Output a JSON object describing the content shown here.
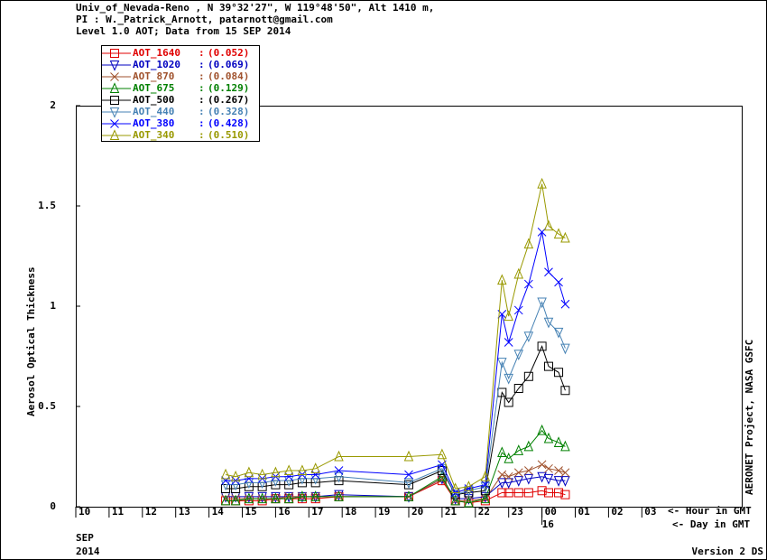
{
  "chart_data": {
    "type": "line",
    "header": [
      "Univ_of_Nevada-Reno , N 39°32'27\", W 119°48'50\", Alt 1410 m,",
      "PI : W._Patrick_Arnott, patarnott@gmail.com",
      "Level 1.0 AOT; Data from 15 SEP 2014"
    ],
    "y_label": "Aerosol Optical Thickness",
    "right_label": "AERONET Project, NASA GSFC",
    "hour_note": "<- Hour in GMT",
    "day_note": "<- Day in GMT",
    "month": "SEP",
    "year": "2014",
    "version": "Version 2 DS",
    "xlim": [
      10,
      30
    ],
    "xticks": [
      10,
      11,
      12,
      13,
      14,
      15,
      16,
      17,
      18,
      19,
      20,
      21,
      22,
      23,
      {
        "value": 24,
        "label": "00"
      },
      {
        "value": 25,
        "label": "01"
      },
      {
        "value": 26,
        "label": "02"
      },
      {
        "value": 27,
        "label": "03"
      }
    ],
    "day_ticks": [
      {
        "value": 24,
        "label": "16"
      }
    ],
    "ylim": [
      0,
      2
    ],
    "yticks": [
      0,
      0.5,
      1,
      1.5,
      2
    ],
    "x": [
      14.5,
      14.8,
      15.2,
      15.6,
      16.0,
      16.4,
      16.8,
      17.2,
      17.9,
      20.0,
      21.0,
      21.4,
      21.8,
      22.3,
      22.8,
      23.0,
      23.3,
      23.6,
      24.0,
      24.2,
      24.5,
      24.7
    ],
    "series": [
      {
        "name": "AOT_1640",
        "legend_value": "(0.052)",
        "color": "#e00000",
        "marker": "square",
        "values": [
          0.03,
          0.03,
          0.03,
          0.03,
          0.04,
          0.04,
          0.04,
          0.04,
          0.05,
          0.05,
          0.13,
          0.03,
          0.02,
          0.03,
          0.07,
          0.07,
          0.07,
          0.07,
          0.08,
          0.07,
          0.07,
          0.06
        ]
      },
      {
        "name": "AOT_1020",
        "legend_value": "(0.069)",
        "color": "#0000c0",
        "marker": "tri-down",
        "values": [
          0.05,
          0.05,
          0.05,
          0.05,
          0.05,
          0.05,
          0.05,
          0.05,
          0.06,
          0.05,
          0.14,
          0.04,
          0.04,
          0.05,
          0.12,
          0.12,
          0.13,
          0.14,
          0.15,
          0.14,
          0.13,
          0.13
        ]
      },
      {
        "name": "AOT_870",
        "legend_value": "(0.084)",
        "color": "#a0522d",
        "marker": "cross",
        "values": [
          0.04,
          0.04,
          0.04,
          0.04,
          0.04,
          0.05,
          0.05,
          0.05,
          0.05,
          0.05,
          0.14,
          0.03,
          0.03,
          0.04,
          0.16,
          0.15,
          0.17,
          0.18,
          0.21,
          0.19,
          0.18,
          0.17
        ]
      },
      {
        "name": "AOT_675",
        "legend_value": "(0.129)",
        "color": "#008000",
        "marker": "tri-up",
        "values": [
          0.03,
          0.03,
          0.04,
          0.04,
          0.04,
          0.04,
          0.05,
          0.05,
          0.05,
          0.05,
          0.15,
          0.03,
          0.02,
          0.04,
          0.27,
          0.24,
          0.28,
          0.3,
          0.38,
          0.34,
          0.32,
          0.3
        ]
      },
      {
        "name": "AOT_500",
        "legend_value": "(0.267)",
        "color": "#000000",
        "marker": "square",
        "values": [
          0.09,
          0.09,
          0.1,
          0.1,
          0.11,
          0.11,
          0.12,
          0.12,
          0.13,
          0.11,
          0.18,
          0.06,
          0.07,
          0.08,
          0.57,
          0.52,
          0.59,
          0.65,
          0.8,
          0.7,
          0.67,
          0.58
        ]
      },
      {
        "name": "AOT_440",
        "legend_value": "(0.328)",
        "color": "#4682b4",
        "marker": "tri-down",
        "values": [
          0.11,
          0.11,
          0.12,
          0.12,
          0.13,
          0.13,
          0.14,
          0.14,
          0.15,
          0.12,
          0.19,
          0.06,
          0.08,
          0.1,
          0.72,
          0.64,
          0.76,
          0.85,
          1.02,
          0.92,
          0.87,
          0.79
        ]
      },
      {
        "name": "AOT_380",
        "legend_value": "(0.428)",
        "color": "#0000ff",
        "marker": "cross",
        "values": [
          0.13,
          0.13,
          0.14,
          0.14,
          0.15,
          0.15,
          0.16,
          0.16,
          0.18,
          0.16,
          0.21,
          0.07,
          0.09,
          0.11,
          0.96,
          0.82,
          0.98,
          1.11,
          1.37,
          1.17,
          1.12,
          1.01
        ]
      },
      {
        "name": "AOT_340",
        "legend_value": "(0.510)",
        "color": "#999900",
        "marker": "tri-up",
        "values": [
          0.16,
          0.15,
          0.17,
          0.16,
          0.17,
          0.18,
          0.18,
          0.19,
          0.25,
          0.25,
          0.26,
          0.09,
          0.1,
          0.15,
          1.13,
          0.95,
          1.16,
          1.31,
          1.61,
          1.4,
          1.36,
          1.34
        ]
      }
    ]
  }
}
